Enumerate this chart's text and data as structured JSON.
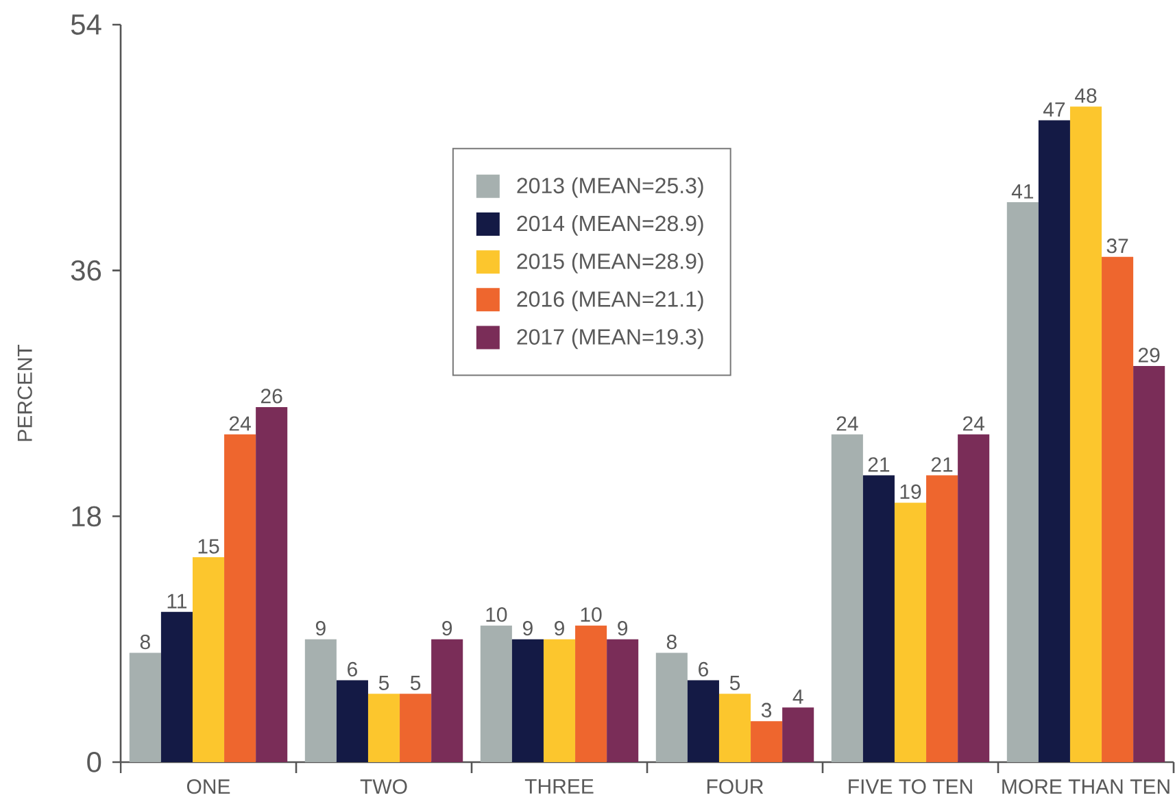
{
  "chart_data": {
    "type": "bar",
    "ylabel": "PERCENT",
    "categories": [
      "ONE",
      "TWO",
      "THREE",
      "FOUR",
      "FIVE TO TEN",
      "MORE THAN TEN"
    ],
    "series": [
      {
        "name": "2013 (MEAN=25.3)",
        "color": "#a6b0af",
        "values": [
          8,
          9,
          10,
          8,
          24,
          41
        ]
      },
      {
        "name": "2014 (MEAN=28.9)",
        "color": "#141a45",
        "values": [
          11,
          6,
          9,
          6,
          21,
          47
        ]
      },
      {
        "name": "2015 (MEAN=28.9)",
        "color": "#fcc62d",
        "values": [
          15,
          5,
          9,
          5,
          19,
          48
        ]
      },
      {
        "name": "2016 (MEAN=21.1)",
        "color": "#ee662e",
        "values": [
          24,
          5,
          10,
          3,
          21,
          37
        ]
      },
      {
        "name": "2017 (MEAN=19.3)",
        "color": "#7a2d58",
        "values": [
          26,
          9,
          9,
          4,
          24,
          29
        ]
      }
    ],
    "ylim": [
      0,
      54
    ],
    "yticks": [
      0,
      18,
      36,
      54
    ],
    "legend": "top",
    "data_labels": true
  }
}
